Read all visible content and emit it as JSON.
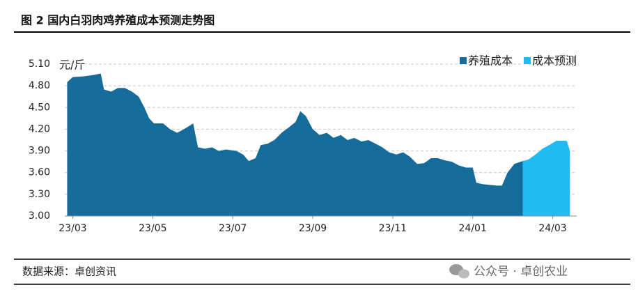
{
  "header": {
    "title": "图 2 国内白羽肉鸡养殖成本预测走势图"
  },
  "chart_data": {
    "type": "area",
    "y_label": "元/斤",
    "series": [
      {
        "name": "养殖成本",
        "color": "#156c9b",
        "x": [
          -0.14,
          0,
          0.26,
          0.52,
          0.7,
          0.78,
          0.96,
          1.13,
          1.3,
          1.48,
          1.65,
          1.79,
          1.91,
          2.03,
          2.26,
          2.43,
          2.61,
          2.78,
          3.01,
          3.13,
          3.3,
          3.48,
          3.65,
          3.83,
          4.09,
          4.26,
          4.4,
          4.57,
          4.7,
          4.87,
          5.04,
          5.22,
          5.39,
          5.57,
          5.69,
          5.83,
          6.0,
          6.17,
          6.35,
          6.52,
          6.7,
          6.87,
          7.04,
          7.22,
          7.39,
          7.57,
          7.74,
          7.91,
          8.09,
          8.26,
          8.43,
          8.61,
          8.78,
          8.96,
          9.13,
          9.3,
          9.48,
          9.65,
          9.83,
          10.0,
          10.09,
          10.26,
          10.43,
          10.61,
          10.73,
          10.87,
          11.04,
          11.25
        ],
        "values": [
          4.85,
          4.92,
          4.93,
          4.95,
          4.97,
          4.75,
          4.72,
          4.77,
          4.77,
          4.72,
          4.65,
          4.5,
          4.35,
          4.28,
          4.28,
          4.2,
          4.15,
          4.2,
          4.28,
          3.95,
          3.93,
          3.95,
          3.9,
          3.92,
          3.9,
          3.85,
          3.76,
          3.8,
          3.98,
          4.0,
          4.05,
          4.15,
          4.22,
          4.3,
          4.45,
          4.38,
          4.2,
          4.12,
          4.15,
          4.08,
          4.12,
          4.05,
          4.08,
          4.03,
          4.05,
          4.0,
          3.95,
          3.88,
          3.85,
          3.88,
          3.82,
          3.72,
          3.73,
          3.8,
          3.8,
          3.77,
          3.75,
          3.7,
          3.67,
          3.67,
          3.46,
          3.44,
          3.43,
          3.42,
          3.42,
          3.6,
          3.72,
          3.76
        ]
      },
      {
        "name": "成本预测",
        "color": "#1fbcf2",
        "x": [
          11.25,
          11.39,
          11.57,
          11.74,
          11.91,
          12.09,
          12.26,
          12.35,
          12.43
        ],
        "values": [
          3.76,
          3.78,
          3.85,
          3.93,
          3.98,
          4.04,
          4.04,
          4.04,
          3.9
        ]
      }
    ],
    "xlim": [
      -0.2,
      12.6
    ],
    "xticks": [
      {
        "value": 0,
        "label": "23/03"
      },
      {
        "value": 2,
        "label": "23/05"
      },
      {
        "value": 4,
        "label": "23/07"
      },
      {
        "value": 6,
        "label": "23/09"
      },
      {
        "value": 8,
        "label": "23/11"
      },
      {
        "value": 10,
        "label": "24/01"
      },
      {
        "value": 12,
        "label": "24/03"
      }
    ],
    "ylim": [
      3.0,
      5.1
    ],
    "yticks": [
      {
        "value": 3.0,
        "label": "3.00"
      },
      {
        "value": 3.3,
        "label": "3.30"
      },
      {
        "value": 3.6,
        "label": "3.60"
      },
      {
        "value": 3.9,
        "label": "3.90"
      },
      {
        "value": 4.2,
        "label": "4.20"
      },
      {
        "value": 4.5,
        "label": "4.50"
      },
      {
        "value": 4.8,
        "label": "4.80"
      },
      {
        "value": 5.1,
        "label": "5.10"
      }
    ],
    "grid": true,
    "legend": "top-right"
  },
  "footer": {
    "source": "数据来源：卓创资讯",
    "watermark": "公众号 · 卓创农业"
  }
}
